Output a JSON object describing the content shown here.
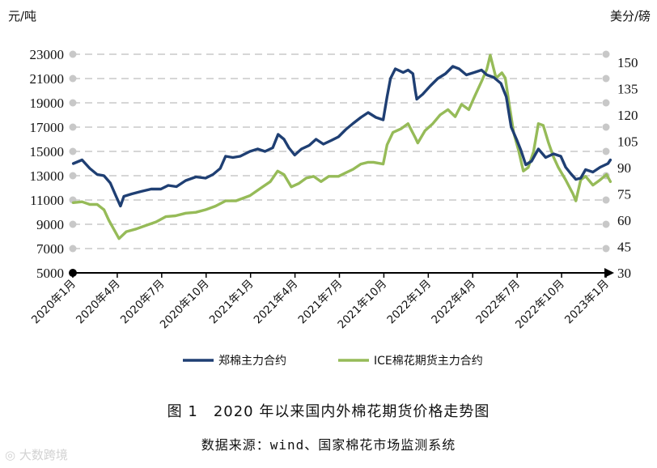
{
  "caption": "图 1　2020 年以来国内外棉花期货价格走势图",
  "source": "数据来源：wind、国家棉花市场监测系统",
  "watermark": "大数跨境",
  "colors": {
    "zce": "#1f3f73",
    "ice": "#96bb58",
    "grid": "#c8c8c8",
    "axis": "#000000"
  },
  "chart_data": {
    "type": "line",
    "left_axis": {
      "unit": "元/吨",
      "ticks": [
        5000,
        7000,
        9000,
        11000,
        13000,
        15000,
        17000,
        19000,
        21000,
        23000
      ],
      "range": [
        5000,
        23000
      ]
    },
    "right_axis": {
      "unit": "美分/磅",
      "ticks": [
        30,
        45,
        60,
        75,
        90,
        105,
        120,
        135,
        150
      ],
      "range": [
        30,
        154.55
      ]
    },
    "x_ticks": [
      "2020年1月",
      "2020年4月",
      "2020年7月",
      "2020年10月",
      "2021年1月",
      "2021年4月",
      "2021年7月",
      "2021年10月",
      "2022年1月",
      "2022年4月",
      "2022年7月",
      "2022年10月",
      "2023年1月"
    ],
    "grid": "horizontal-dashed",
    "legend_position": "bottom",
    "series": [
      {
        "name": "郑棉主力合约",
        "axis": "left",
        "color": "#1f3f73",
        "points": [
          [
            "2020-01-02",
            14000
          ],
          [
            "2020-01-20",
            14300
          ],
          [
            "2020-02-05",
            13600
          ],
          [
            "2020-02-20",
            13100
          ],
          [
            "2020-03-05",
            13000
          ],
          [
            "2020-03-18",
            12400
          ],
          [
            "2020-03-30",
            11300
          ],
          [
            "2020-04-08",
            10500
          ],
          [
            "2020-04-15",
            11300
          ],
          [
            "2020-05-01",
            11500
          ],
          [
            "2020-05-20",
            11700
          ],
          [
            "2020-06-10",
            11900
          ],
          [
            "2020-06-30",
            11900
          ],
          [
            "2020-07-15",
            12200
          ],
          [
            "2020-08-01",
            12100
          ],
          [
            "2020-08-20",
            12600
          ],
          [
            "2020-09-10",
            12900
          ],
          [
            "2020-09-30",
            12800
          ],
          [
            "2020-10-15",
            13100
          ],
          [
            "2020-10-30",
            13600
          ],
          [
            "2020-11-10",
            14600
          ],
          [
            "2020-11-25",
            14500
          ],
          [
            "2020-12-10",
            14600
          ],
          [
            "2020-12-30",
            15000
          ],
          [
            "2021-01-15",
            15200
          ],
          [
            "2021-01-30",
            15000
          ],
          [
            "2021-02-15",
            15300
          ],
          [
            "2021-02-26",
            16400
          ],
          [
            "2021-03-10",
            16000
          ],
          [
            "2021-03-20",
            15300
          ],
          [
            "2021-04-01",
            14700
          ],
          [
            "2021-04-15",
            15200
          ],
          [
            "2021-05-01",
            15500
          ],
          [
            "2021-05-15",
            16000
          ],
          [
            "2021-05-30",
            15600
          ],
          [
            "2021-06-15",
            15900
          ],
          [
            "2021-06-30",
            16200
          ],
          [
            "2021-07-15",
            16800
          ],
          [
            "2021-07-30",
            17300
          ],
          [
            "2021-08-15",
            17800
          ],
          [
            "2021-08-30",
            18200
          ],
          [
            "2021-09-15",
            17800
          ],
          [
            "2021-09-30",
            17600
          ],
          [
            "2021-10-08",
            19500
          ],
          [
            "2021-10-15",
            21000
          ],
          [
            "2021-10-25",
            21800
          ],
          [
            "2021-11-10",
            21500
          ],
          [
            "2021-11-20",
            21700
          ],
          [
            "2021-11-30",
            21400
          ],
          [
            "2021-12-05",
            20000
          ],
          [
            "2021-12-08",
            19300
          ],
          [
            "2021-12-20",
            19700
          ],
          [
            "2022-01-05",
            20400
          ],
          [
            "2022-01-20",
            21000
          ],
          [
            "2022-02-05",
            21400
          ],
          [
            "2022-02-20",
            22000
          ],
          [
            "2022-03-05",
            21800
          ],
          [
            "2022-03-20",
            21300
          ],
          [
            "2022-04-05",
            21500
          ],
          [
            "2022-04-20",
            21700
          ],
          [
            "2022-05-01",
            21300
          ],
          [
            "2022-05-15",
            21100
          ],
          [
            "2022-05-30",
            20600
          ],
          [
            "2022-06-10",
            19500
          ],
          [
            "2022-06-20",
            17000
          ],
          [
            "2022-07-01",
            16000
          ],
          [
            "2022-07-10",
            15100
          ],
          [
            "2022-07-20",
            13900
          ],
          [
            "2022-08-01",
            14200
          ],
          [
            "2022-08-15",
            15200
          ],
          [
            "2022-08-30",
            14500
          ],
          [
            "2022-09-15",
            14800
          ],
          [
            "2022-09-30",
            14600
          ],
          [
            "2022-10-10",
            13700
          ],
          [
            "2022-10-20",
            13200
          ],
          [
            "2022-10-31",
            12700
          ],
          [
            "2022-11-10",
            12800
          ],
          [
            "2022-11-20",
            13500
          ],
          [
            "2022-12-05",
            13300
          ],
          [
            "2022-12-20",
            13700
          ],
          [
            "2023-01-05",
            14000
          ],
          [
            "2023-01-10",
            14300
          ]
        ]
      },
      {
        "name": "ICE棉花期货主力合约",
        "axis": "right",
        "color": "#96bb58",
        "points": [
          [
            "2020-01-02",
            70
          ],
          [
            "2020-01-20",
            70.5
          ],
          [
            "2020-02-05",
            69
          ],
          [
            "2020-02-20",
            69
          ],
          [
            "2020-03-05",
            66
          ],
          [
            "2020-03-15",
            60
          ],
          [
            "2020-03-25",
            55
          ],
          [
            "2020-04-05",
            49.5
          ],
          [
            "2020-04-20",
            53.5
          ],
          [
            "2020-05-10",
            55
          ],
          [
            "2020-05-30",
            57
          ],
          [
            "2020-06-20",
            59
          ],
          [
            "2020-07-10",
            62
          ],
          [
            "2020-07-30",
            62.5
          ],
          [
            "2020-08-20",
            64
          ],
          [
            "2020-09-10",
            64.5
          ],
          [
            "2020-09-30",
            66
          ],
          [
            "2020-10-20",
            68
          ],
          [
            "2020-11-10",
            71
          ],
          [
            "2020-12-01",
            71
          ],
          [
            "2020-12-30",
            74
          ],
          [
            "2021-01-20",
            78
          ],
          [
            "2021-02-10",
            82
          ],
          [
            "2021-02-25",
            88
          ],
          [
            "2021-03-10",
            86
          ],
          [
            "2021-03-25",
            79
          ],
          [
            "2021-04-10",
            81
          ],
          [
            "2021-04-25",
            84
          ],
          [
            "2021-05-10",
            85
          ],
          [
            "2021-05-25",
            82
          ],
          [
            "2021-06-10",
            85
          ],
          [
            "2021-06-30",
            85
          ],
          [
            "2021-07-15",
            87
          ],
          [
            "2021-07-30",
            89
          ],
          [
            "2021-08-15",
            92
          ],
          [
            "2021-08-30",
            93
          ],
          [
            "2021-09-10",
            93
          ],
          [
            "2021-09-30",
            92
          ],
          [
            "2021-10-08",
            103
          ],
          [
            "2021-10-20",
            110
          ],
          [
            "2021-11-05",
            112
          ],
          [
            "2021-11-20",
            115
          ],
          [
            "2021-12-05",
            107
          ],
          [
            "2021-12-10",
            104
          ],
          [
            "2021-12-25",
            111
          ],
          [
            "2022-01-10",
            115
          ],
          [
            "2022-01-25",
            120
          ],
          [
            "2022-02-10",
            123
          ],
          [
            "2022-02-25",
            119
          ],
          [
            "2022-03-10",
            126
          ],
          [
            "2022-03-25",
            123
          ],
          [
            "2022-04-05",
            130
          ],
          [
            "2022-04-20",
            139
          ],
          [
            "2022-05-01",
            146
          ],
          [
            "2022-05-08",
            154
          ],
          [
            "2022-05-20",
            141
          ],
          [
            "2022-06-01",
            144
          ],
          [
            "2022-06-08",
            141
          ],
          [
            "2022-06-15",
            128
          ],
          [
            "2022-06-25",
            110
          ],
          [
            "2022-07-05",
            100
          ],
          [
            "2022-07-15",
            88
          ],
          [
            "2022-07-25",
            90
          ],
          [
            "2022-08-05",
            99
          ],
          [
            "2022-08-15",
            115
          ],
          [
            "2022-08-25",
            114
          ],
          [
            "2022-09-05",
            104
          ],
          [
            "2022-09-15",
            96
          ],
          [
            "2022-09-25",
            90
          ],
          [
            "2022-10-10",
            83
          ],
          [
            "2022-10-25",
            75
          ],
          [
            "2022-10-31",
            71
          ],
          [
            "2022-11-10",
            83
          ],
          [
            "2022-11-20",
            85
          ],
          [
            "2022-12-05",
            80
          ],
          [
            "2022-12-20",
            83
          ],
          [
            "2023-01-02",
            86
          ],
          [
            "2023-01-10",
            82
          ]
        ]
      }
    ]
  }
}
